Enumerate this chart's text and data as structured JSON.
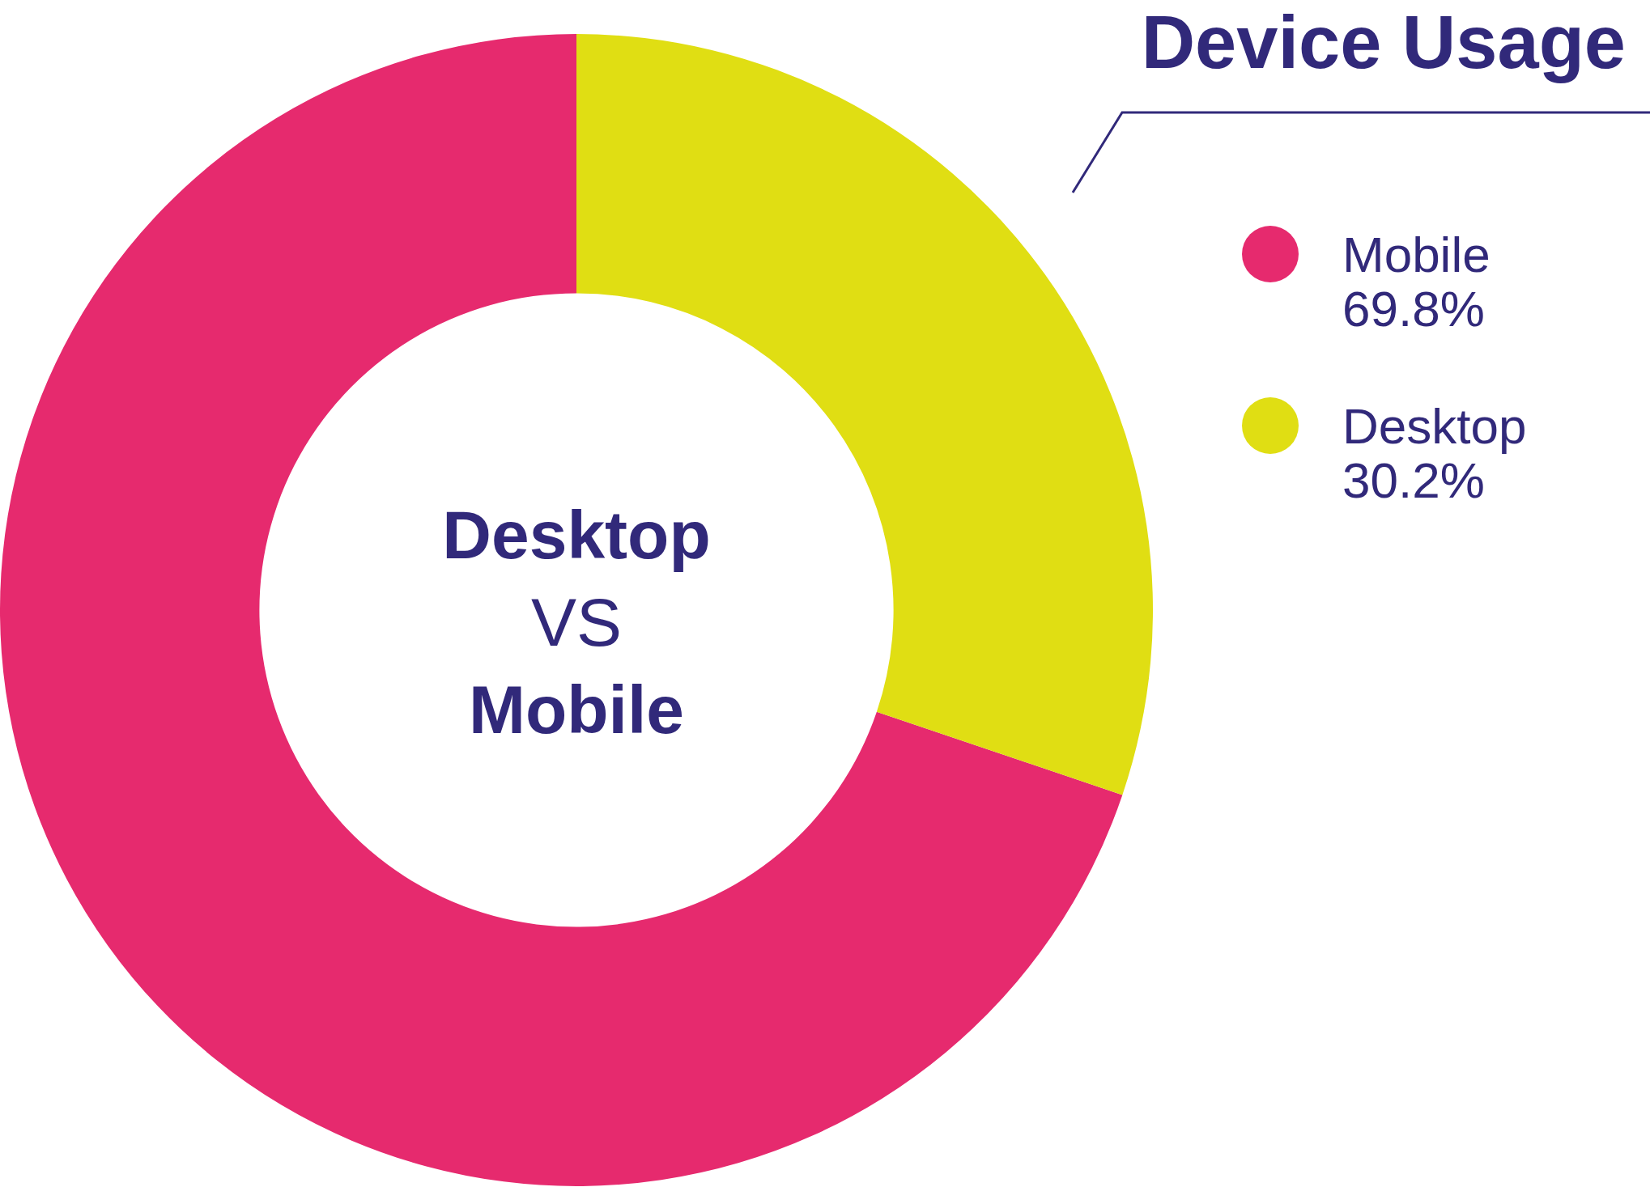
{
  "chart_data": {
    "type": "donut",
    "title": "Device Usage",
    "categories": [
      "Mobile",
      "Desktop"
    ],
    "values": [
      69.8,
      30.2
    ],
    "colors": [
      "#e62a6e",
      "#e0de13"
    ],
    "value_labels": [
      "69.8%",
      "30.2%"
    ],
    "legend": "right",
    "annotations": [
      "Desktop",
      "VS",
      "Mobile"
    ]
  }
}
